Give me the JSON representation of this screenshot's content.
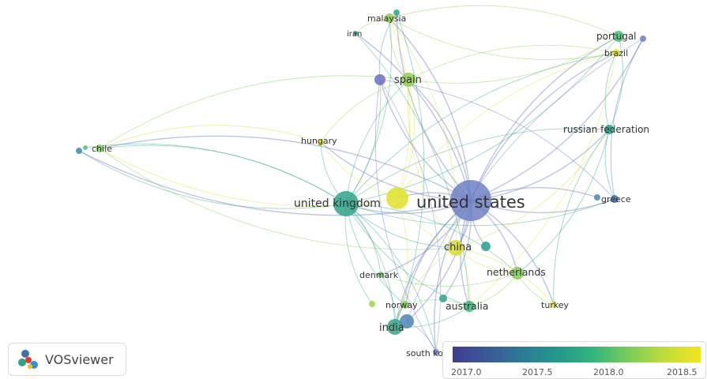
{
  "nodes": [
    {
      "id": "united-states",
      "label": "united states",
      "color": "#6f7fc4"
    },
    {
      "id": "united-kingdom",
      "label": "united kingdom",
      "color": "#2fa38a"
    },
    {
      "id": "uk-yellow",
      "label": "",
      "color": "#dfe02c"
    },
    {
      "id": "china",
      "label": "china",
      "color": "#d8dc33"
    },
    {
      "id": "china-teal",
      "label": "",
      "color": "#27a08e"
    },
    {
      "id": "netherlands",
      "label": "netherlands",
      "color": "#7fcd56"
    },
    {
      "id": "australia",
      "label": "australia",
      "color": "#3fb27b"
    },
    {
      "id": "australia-teal",
      "label": "",
      "color": "#2fa18c"
    },
    {
      "id": "india",
      "label": "india",
      "color": "#35a688"
    },
    {
      "id": "india-blue",
      "label": "",
      "color": "#4f84b0"
    },
    {
      "id": "norway",
      "label": "norway",
      "color": "#7fd156"
    },
    {
      "id": "norway-dot",
      "label": "",
      "color": "#9ad34c"
    },
    {
      "id": "denmark",
      "label": "denmark",
      "color": "#6fc95f"
    },
    {
      "id": "south-korea",
      "label": "south korea",
      "color": "#7f88c8"
    },
    {
      "id": "turkey",
      "label": "turkey",
      "color": "#e6df2a"
    },
    {
      "id": "greece",
      "label": "greece",
      "color": "#3b6fa4"
    },
    {
      "id": "greece-dot",
      "label": "",
      "color": "#4f86ae"
    },
    {
      "id": "russian-federation",
      "label": "russian federation",
      "color": "#22a08a"
    },
    {
      "id": "portugal",
      "label": "portugal",
      "color": "#4ebd77"
    },
    {
      "id": "portugal-dot",
      "label": "",
      "color": "#6f7fc4"
    },
    {
      "id": "brazil",
      "label": "brazil",
      "color": "#e2e02c"
    },
    {
      "id": "spain",
      "label": "spain",
      "color": "#8fd04f"
    },
    {
      "id": "spain-blue",
      "label": "",
      "color": "#6d6ec0"
    },
    {
      "id": "malaysia",
      "label": "malaysia",
      "color": "#8fcf52"
    },
    {
      "id": "malaysia-dot",
      "label": "",
      "color": "#30a58a"
    },
    {
      "id": "iran",
      "label": "iran",
      "color": "#27a08c"
    },
    {
      "id": "hungary",
      "label": "hungary",
      "color": "#dcd92f"
    },
    {
      "id": "chile",
      "label": "chile",
      "color": "#7fcc5a"
    },
    {
      "id": "chile-dot1",
      "label": "",
      "color": "#3b8cb0"
    },
    {
      "id": "chile-dot2",
      "label": "",
      "color": "#4fbf80"
    }
  ],
  "edges": [
    [
      "united-states",
      "united-kingdom"
    ],
    [
      "united-states",
      "uk-yellow"
    ],
    [
      "united-states",
      "china"
    ],
    [
      "united-states",
      "china-teal"
    ],
    [
      "united-states",
      "netherlands"
    ],
    [
      "united-states",
      "australia"
    ],
    [
      "united-states",
      "australia-teal"
    ],
    [
      "united-states",
      "india"
    ],
    [
      "united-states",
      "india-blue"
    ],
    [
      "united-states",
      "norway"
    ],
    [
      "united-states",
      "denmark"
    ],
    [
      "united-states",
      "south-korea"
    ],
    [
      "united-states",
      "turkey"
    ],
    [
      "united-states",
      "greece"
    ],
    [
      "united-states",
      "greece-dot"
    ],
    [
      "united-states",
      "russian-federation"
    ],
    [
      "united-states",
      "portugal"
    ],
    [
      "united-states",
      "portugal-dot"
    ],
    [
      "united-states",
      "brazil"
    ],
    [
      "united-states",
      "spain"
    ],
    [
      "united-states",
      "spain-blue"
    ],
    [
      "united-states",
      "malaysia"
    ],
    [
      "united-states",
      "malaysia-dot"
    ],
    [
      "united-states",
      "iran"
    ],
    [
      "united-states",
      "hungary"
    ],
    [
      "united-states",
      "chile"
    ],
    [
      "united-states",
      "chile-dot1"
    ],
    [
      "united-kingdom",
      "chile"
    ],
    [
      "united-kingdom",
      "chile-dot1"
    ],
    [
      "united-kingdom",
      "chile-dot2"
    ],
    [
      "united-kingdom",
      "spain"
    ],
    [
      "united-kingdom",
      "spain-blue"
    ],
    [
      "united-kingdom",
      "india"
    ],
    [
      "united-kingdom",
      "china"
    ],
    [
      "united-kingdom",
      "netherlands"
    ],
    [
      "united-kingdom",
      "australia"
    ],
    [
      "united-kingdom",
      "denmark"
    ],
    [
      "united-kingdom",
      "norway"
    ],
    [
      "united-kingdom",
      "hungary"
    ],
    [
      "united-kingdom",
      "malaysia"
    ],
    [
      "united-kingdom",
      "russian-federation"
    ],
    [
      "united-kingdom",
      "greece"
    ],
    [
      "united-kingdom",
      "brazil"
    ],
    [
      "united-kingdom",
      "portugal"
    ],
    [
      "united-kingdom",
      "south-korea"
    ],
    [
      "united-kingdom",
      "norway-dot"
    ],
    [
      "uk-yellow",
      "chile"
    ],
    [
      "uk-yellow",
      "spain"
    ],
    [
      "uk-yellow",
      "hungary"
    ],
    [
      "uk-yellow",
      "china"
    ],
    [
      "uk-yellow",
      "india"
    ],
    [
      "uk-yellow",
      "malaysia"
    ],
    [
      "uk-yellow",
      "brazil"
    ],
    [
      "china",
      "netherlands"
    ],
    [
      "china",
      "australia"
    ],
    [
      "china",
      "india"
    ],
    [
      "china",
      "spain"
    ],
    [
      "china",
      "malaysia"
    ],
    [
      "china",
      "turkey"
    ],
    [
      "china",
      "russian-federation"
    ],
    [
      "spain",
      "malaysia"
    ],
    [
      "spain",
      "portugal"
    ],
    [
      "spain",
      "brazil"
    ],
    [
      "spain",
      "hungary"
    ],
    [
      "spain-blue",
      "malaysia-dot"
    ],
    [
      "spain-blue",
      "south-korea"
    ],
    [
      "spain-blue",
      "greece"
    ],
    [
      "malaysia",
      "iran"
    ],
    [
      "malaysia",
      "portugal"
    ],
    [
      "malaysia",
      "brazil"
    ],
    [
      "malaysia-dot",
      "india"
    ],
    [
      "russian-federation",
      "portugal"
    ],
    [
      "russian-federation",
      "brazil"
    ],
    [
      "russian-federation",
      "greece"
    ],
    [
      "russian-federation",
      "netherlands"
    ],
    [
      "russian-federation",
      "turkey"
    ],
    [
      "greece",
      "portugal-dot"
    ],
    [
      "portugal-dot",
      "india-blue"
    ],
    [
      "brazil",
      "australia"
    ],
    [
      "netherlands",
      "turkey"
    ],
    [
      "netherlands",
      "australia"
    ],
    [
      "india",
      "australia"
    ],
    [
      "india",
      "norway"
    ],
    [
      "india",
      "denmark"
    ],
    [
      "india-blue",
      "south-korea"
    ],
    [
      "hungary",
      "chile"
    ],
    [
      "chile",
      "spain"
    ],
    [
      "chile",
      "china"
    ],
    [
      "iran",
      "australia"
    ],
    [
      "denmark",
      "netherlands"
    ],
    [
      "norway",
      "australia"
    ],
    [
      "south-korea",
      "spain-blue"
    ]
  ],
  "colorbar": {
    "ticks": [
      "2017.0",
      "2017.5",
      "2018.0",
      "2018.5"
    ]
  },
  "logo": {
    "text": "VOSviewer"
  }
}
